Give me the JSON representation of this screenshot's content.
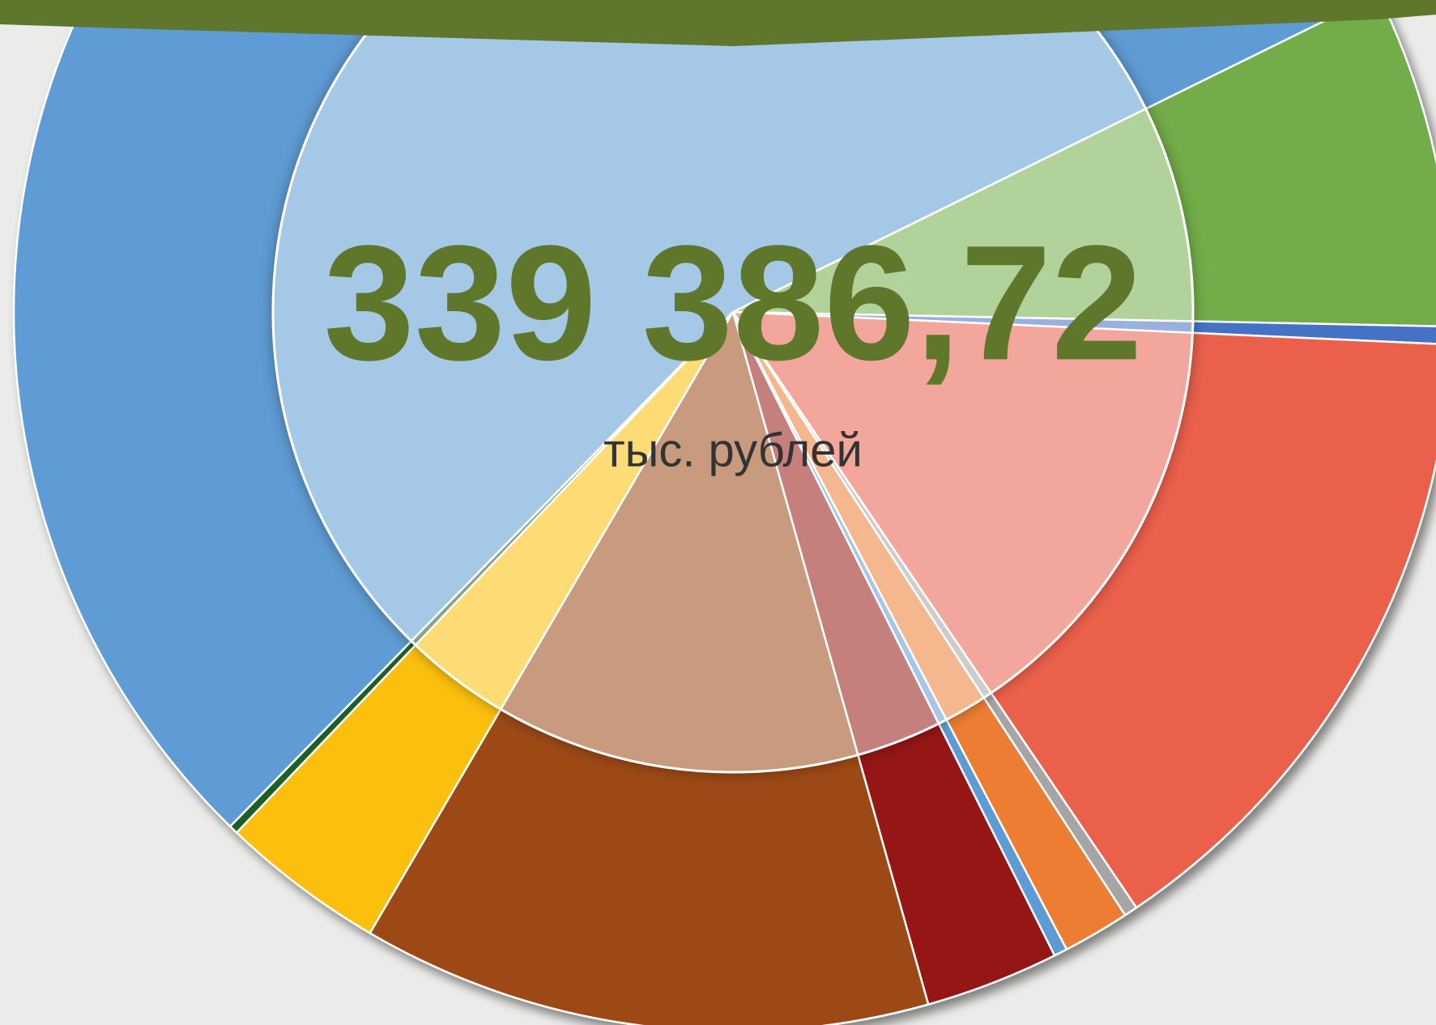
{
  "chart_data": {
    "type": "pie",
    "title": "339 386,72",
    "subtitle": "тыс. рублей",
    "values": [
      7.6,
      0.4,
      14.8,
      0.3,
      1.5,
      0.3,
      3.0,
      12.8,
      3.7,
      0.2,
      55.4
    ],
    "colors": [
      "#72ad4a",
      "#4472c4",
      "#ea604c",
      "#a5a5a5",
      "#ed7d31",
      "#5b9bd5",
      "#961815",
      "#9c4a16",
      "#fbbf07",
      "#1e5e2b",
      "#5e9bd4"
    ]
  }
}
